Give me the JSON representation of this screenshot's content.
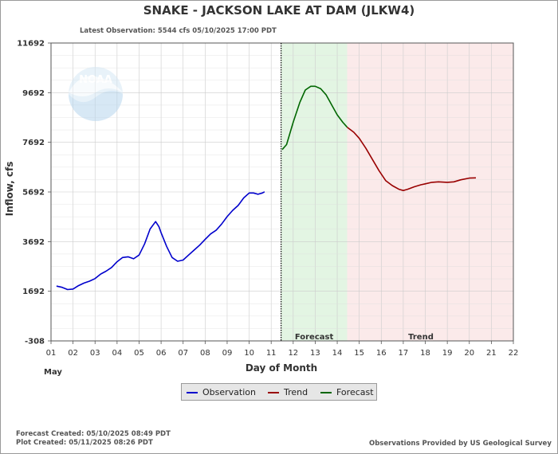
{
  "chart_data": {
    "type": "line",
    "title": "SNAKE - JACKSON LAKE AT DAM  (JLKW4)",
    "subtitle": "Latest Observation: 5544 cfs 05/10/2025 17:00 PDT",
    "xlabel": "Day of Month",
    "xlabel_month": "May",
    "ylabel": "Inflow, cfs",
    "xlim": [
      1,
      22
    ],
    "ylim": [
      -308,
      11692
    ],
    "x_ticks": [
      "01",
      "02",
      "03",
      "04",
      "05",
      "06",
      "07",
      "08",
      "09",
      "10",
      "11",
      "12",
      "13",
      "14",
      "15",
      "16",
      "17",
      "18",
      "19",
      "20",
      "21",
      "22"
    ],
    "y_ticks": [
      11692,
      9692,
      7692,
      5692,
      3692,
      1692,
      -308
    ],
    "grid": true,
    "current_time_x": 11.45,
    "zones": [
      {
        "name": "Forecast",
        "x_start": 11.45,
        "x_end": 14.45,
        "color": "#e3f5e3"
      },
      {
        "name": "Trend",
        "x_start": 14.45,
        "x_end": 22,
        "color": "#fbeaea"
      }
    ],
    "series": [
      {
        "name": "Observation",
        "color": "#0000cc",
        "x": [
          1.25,
          1.5,
          1.75,
          2.0,
          2.25,
          2.5,
          2.75,
          3.0,
          3.25,
          3.5,
          3.75,
          4.0,
          4.25,
          4.5,
          4.75,
          5.0,
          5.25,
          5.5,
          5.75,
          5.9,
          6.0,
          6.25,
          6.5,
          6.75,
          7.0,
          7.25,
          7.5,
          7.75,
          8.0,
          8.25,
          8.5,
          8.75,
          9.0,
          9.25,
          9.5,
          9.75,
          10.0,
          10.2,
          10.4,
          10.6,
          10.7
        ],
        "y": [
          1900,
          1850,
          1760,
          1780,
          1920,
          2020,
          2100,
          2200,
          2380,
          2500,
          2650,
          2880,
          3050,
          3080,
          3000,
          3150,
          3600,
          4200,
          4500,
          4300,
          4050,
          3500,
          3050,
          2900,
          2950,
          3150,
          3350,
          3550,
          3780,
          4000,
          4150,
          4400,
          4700,
          4950,
          5150,
          5450,
          5650,
          5650,
          5600,
          5650,
          5700
        ]
      },
      {
        "name": "Forecast",
        "color": "#006600",
        "x": [
          11.5,
          11.7,
          12.0,
          12.3,
          12.55,
          12.8,
          13.0,
          13.25,
          13.5,
          13.75,
          14.0,
          14.25,
          14.45
        ],
        "y": [
          7400,
          7600,
          8500,
          9300,
          9800,
          9950,
          9950,
          9850,
          9600,
          9200,
          8800,
          8500,
          8300
        ]
      },
      {
        "name": "Trend",
        "color": "#990000",
        "x": [
          14.45,
          14.75,
          15.0,
          15.3,
          15.6,
          15.9,
          16.2,
          16.5,
          16.8,
          17.0,
          17.2,
          17.5,
          17.8,
          18.0,
          18.3,
          18.6,
          19.0,
          19.3,
          19.6,
          20.0,
          20.3
        ],
        "y": [
          8300,
          8100,
          7850,
          7450,
          7000,
          6550,
          6150,
          5950,
          5800,
          5750,
          5800,
          5900,
          5980,
          6020,
          6080,
          6100,
          6080,
          6100,
          6180,
          6250,
          6260
        ]
      }
    ]
  },
  "legend": [
    {
      "label": "Observation",
      "color": "#0000cc"
    },
    {
      "label": "Trend",
      "color": "#990000"
    },
    {
      "label": "Forecast",
      "color": "#006600"
    }
  ],
  "footer": {
    "forecast_created": "Forecast Created: 05/10/2025 08:49 PDT",
    "plot_created": "Plot Created: 05/11/2025 08:26 PDT",
    "provider": "Observations Provided by US Geological Survey"
  },
  "watermark": {
    "text": "NOAA",
    "icon": "noaa-logo-icon"
  }
}
